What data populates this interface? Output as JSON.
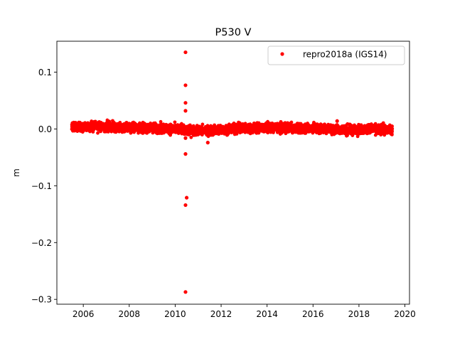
{
  "chart_data": {
    "type": "scatter",
    "title": "P530 V",
    "xlabel": "",
    "ylabel": "m",
    "xlim": [
      2004.85,
      2020.2
    ],
    "ylim": [
      -0.3085,
      0.1545
    ],
    "x_ticks": [
      2006,
      2008,
      2010,
      2012,
      2014,
      2016,
      2018,
      2020
    ],
    "x_tick_labels": [
      "2006",
      "2008",
      "2010",
      "2012",
      "2014",
      "2016",
      "2018",
      "2020"
    ],
    "y_ticks": [
      0.1,
      0.0,
      -0.1,
      -0.2,
      -0.3
    ],
    "y_tick_labels": [
      "0.1",
      "0.0",
      "−0.1",
      "−0.2",
      "−0.3"
    ],
    "grid": false,
    "legend_position": "top-right",
    "series": [
      {
        "name": "repro2018a (IGS14)",
        "color": "#ff0000",
        "marker": "circle",
        "x_range": [
          2005.5,
          2019.45
        ],
        "main_band": [
          [
            2005.5,
            0.003
          ],
          [
            2006.0,
            0.004
          ],
          [
            2006.5,
            0.005
          ],
          [
            2007.0,
            0.004
          ],
          [
            2007.5,
            0.003
          ],
          [
            2008.0,
            0.003
          ],
          [
            2008.5,
            0.002
          ],
          [
            2009.0,
            0.002
          ],
          [
            2009.5,
            0.001
          ],
          [
            2010.0,
            0.0
          ],
          [
            2010.5,
            -0.002
          ],
          [
            2011.0,
            -0.003
          ],
          [
            2011.5,
            -0.003
          ],
          [
            2012.0,
            -0.001
          ],
          [
            2012.5,
            0.0
          ],
          [
            2013.0,
            0.001
          ],
          [
            2013.5,
            0.002
          ],
          [
            2014.0,
            0.002
          ],
          [
            2014.5,
            0.002
          ],
          [
            2015.0,
            0.002
          ],
          [
            2015.5,
            0.001
          ],
          [
            2016.0,
            0.001
          ],
          [
            2016.5,
            0.0
          ],
          [
            2017.0,
            -0.001
          ],
          [
            2017.5,
            -0.002
          ],
          [
            2018.0,
            -0.001
          ],
          [
            2018.5,
            0.0
          ],
          [
            2019.0,
            -0.001
          ],
          [
            2019.45,
            -0.002
          ]
        ],
        "scatter_std": 0.004,
        "outliers": [
          [
            2010.45,
            0.135
          ],
          [
            2010.45,
            0.077
          ],
          [
            2010.45,
            0.046
          ],
          [
            2010.45,
            0.032
          ],
          [
            2010.45,
            -0.016
          ],
          [
            2010.45,
            -0.044
          ],
          [
            2010.5,
            -0.121
          ],
          [
            2010.45,
            -0.134
          ],
          [
            2010.45,
            -0.287
          ],
          [
            2011.42,
            -0.024
          ],
          [
            2017.05,
            0.014
          ]
        ]
      }
    ]
  }
}
